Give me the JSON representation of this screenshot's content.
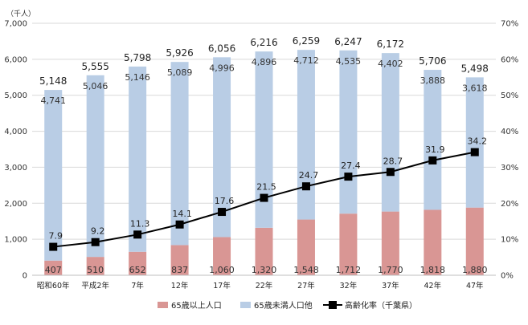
{
  "chart_data": {
    "type": "bar",
    "stacked": true,
    "unit_label": "（千人）",
    "categories": [
      "昭和60年",
      "平成2年",
      "7年",
      "12年",
      "17年",
      "22年",
      "27年",
      "32年",
      "37年",
      "42年",
      "47年"
    ],
    "series": [
      {
        "name": "65歳以上人口",
        "type": "bar",
        "color": "#d99694",
        "values": [
          407,
          510,
          652,
          837,
          1060,
          1320,
          1548,
          1712,
          1770,
          1818,
          1880
        ],
        "labels": [
          "407",
          "510",
          "652",
          "837",
          "1,060",
          "1,320",
          "1,548",
          "1,712",
          "1,770",
          "1,818",
          "1,880"
        ]
      },
      {
        "name": "65歳未満人口他",
        "type": "bar",
        "color": "#b9cde5",
        "values": [
          4741,
          5046,
          5146,
          5089,
          4996,
          4896,
          4712,
          4535,
          4402,
          3888,
          3618
        ],
        "labels": [
          "4,741",
          "5,046",
          "5,146",
          "5,089",
          "4,996",
          "4,896",
          "4,712",
          "4,535",
          "4,402",
          "3,888",
          "3,618"
        ]
      },
      {
        "name": "高齢化率（千葉県）",
        "type": "line",
        "axis": "right",
        "color": "#000000",
        "values": [
          7.9,
          9.2,
          11.3,
          14.1,
          17.6,
          21.5,
          24.7,
          27.4,
          28.7,
          31.9,
          34.2
        ],
        "labels": [
          "7.9",
          "9.2",
          "11.3",
          "14.1",
          "17.6",
          "21.5",
          "24.7",
          "27.4",
          "28.7",
          "31.9",
          "34.2"
        ]
      }
    ],
    "totals": {
      "values": [
        5148,
        5555,
        5798,
        5926,
        6056,
        6216,
        6259,
        6247,
        6172,
        5706,
        5498
      ],
      "labels": [
        "5,148",
        "5,555",
        "5,798",
        "5,926",
        "6,056",
        "6,216",
        "6,259",
        "6,247",
        "6,172",
        "5,706",
        "5,498"
      ]
    },
    "y_left": {
      "min": 0,
      "max": 7000,
      "ticks": [
        "0",
        "1,000",
        "2,000",
        "3,000",
        "4,000",
        "5,000",
        "6,000",
        "7,000"
      ]
    },
    "y_right": {
      "min": 0,
      "max": 70,
      "ticks": [
        "0%",
        "10%",
        "20%",
        "30%",
        "40%",
        "50%",
        "60%",
        "70%"
      ]
    },
    "grid": true,
    "legend_position": "bottom"
  }
}
